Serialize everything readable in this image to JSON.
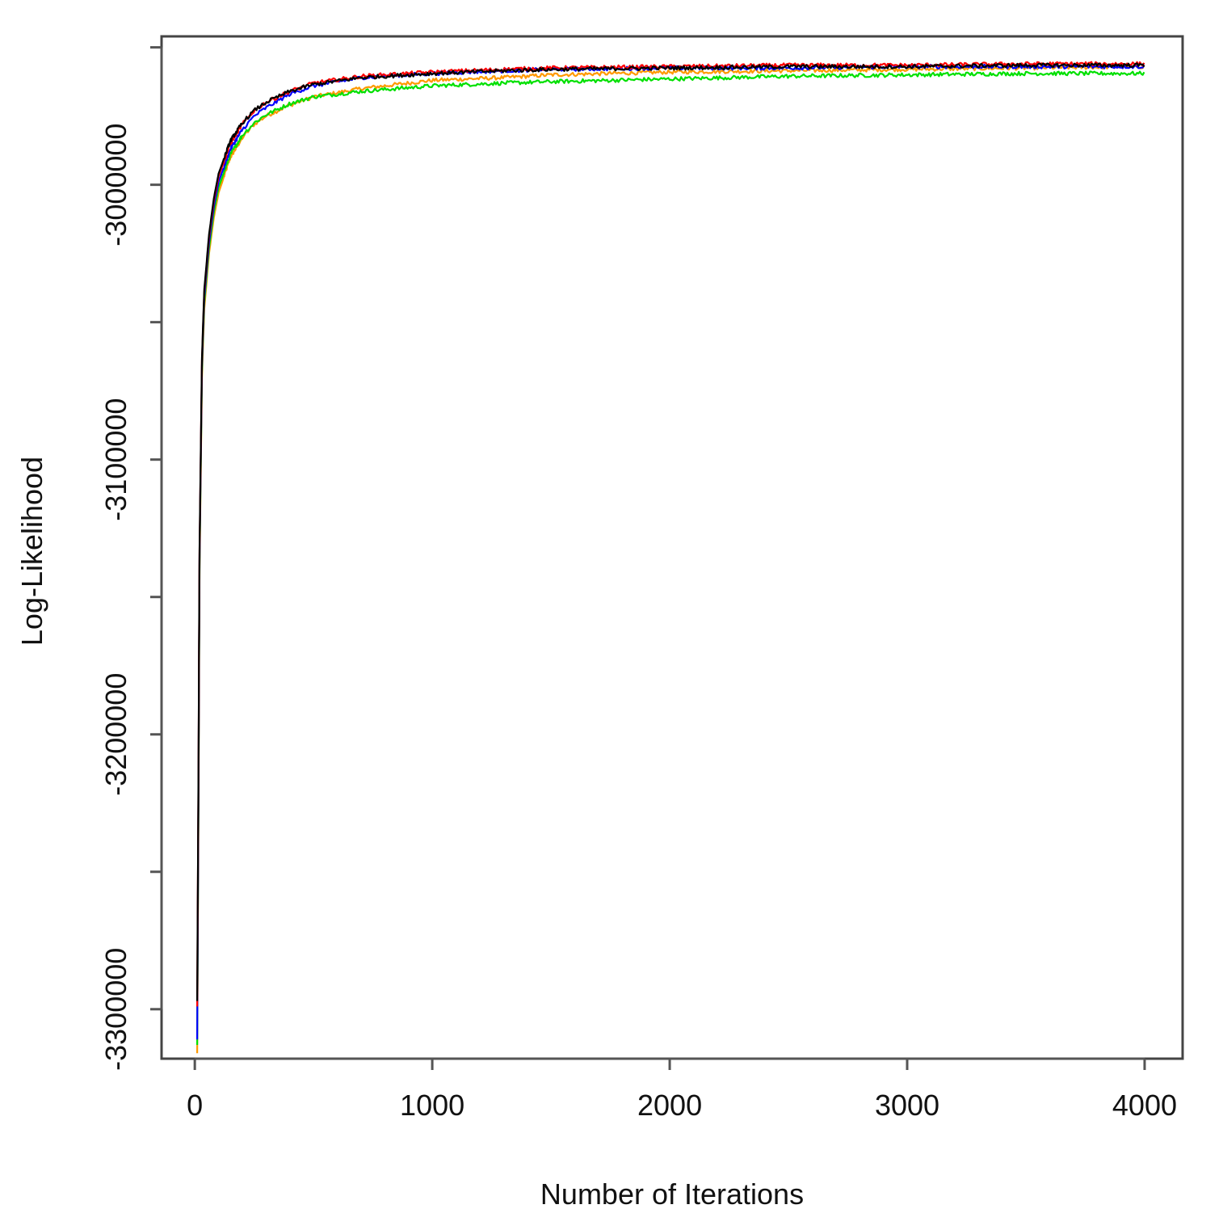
{
  "chart_data": {
    "type": "line",
    "title": "",
    "xlabel": "Number of Iterations",
    "ylabel": "Log-Likelihood",
    "xlim": [
      -140,
      4160
    ],
    "ylim": [
      -3318000,
      -2946000
    ],
    "x_ticks": [
      0,
      1000,
      2000,
      3000,
      4000
    ],
    "x_tick_labels": [
      "0",
      "1000",
      "2000",
      "3000",
      "4000"
    ],
    "y_ticks": [
      -3300000,
      -3250000,
      -3200000,
      -3150000,
      -3100000,
      -3050000,
      -3000000,
      -2950000
    ],
    "y_tick_labels": [
      "-3300000",
      "",
      "-3200000",
      "",
      "-3100000",
      "",
      "-3000000",
      ""
    ],
    "grid": false,
    "legend": "none",
    "series": [
      {
        "color": "#ff9900",
        "x": [
          10,
          15,
          20,
          30,
          40,
          60,
          80,
          100,
          150,
          200,
          250,
          300,
          400,
          500,
          700,
          1000,
          1300,
          1500,
          2000,
          2500,
          3000,
          3500,
          4000
        ],
        "y": [
          -3316000,
          -3230000,
          -3140000,
          -3070000,
          -3045000,
          -3025000,
          -3012000,
          -3003000,
          -2990000,
          -2983000,
          -2978000,
          -2975000,
          -2971000,
          -2968000,
          -2965000,
          -2962000,
          -2961000,
          -2960000,
          -2959000,
          -2958500,
          -2958000,
          -2957500,
          -2957000
        ]
      },
      {
        "color": "#00e000",
        "x": [
          10,
          15,
          20,
          30,
          40,
          60,
          80,
          100,
          150,
          200,
          250,
          300,
          400,
          500,
          700,
          1000,
          1300,
          1500,
          2000,
          2500,
          3000,
          3500,
          4000
        ],
        "y": [
          -3313000,
          -3228000,
          -3138000,
          -3068000,
          -3043000,
          -3023000,
          -3010000,
          -3001000,
          -2989000,
          -2982000,
          -2977500,
          -2974500,
          -2970500,
          -2968000,
          -2966000,
          -2964000,
          -2963000,
          -2962500,
          -2961500,
          -2960500,
          -2960000,
          -2959500,
          -2959500
        ]
      },
      {
        "color": "#0000ff",
        "x": [
          10,
          15,
          20,
          30,
          40,
          60,
          80,
          100,
          150,
          200,
          250,
          300,
          400,
          500,
          700,
          1000,
          1300,
          1500,
          2000,
          2500,
          3000,
          3500,
          4000
        ],
        "y": [
          -3311000,
          -3226000,
          -3136000,
          -3066000,
          -3041000,
          -3021000,
          -3008000,
          -2999000,
          -2987000,
          -2980000,
          -2975000,
          -2972000,
          -2967000,
          -2964000,
          -2961000,
          -2959500,
          -2958500,
          -2958000,
          -2957500,
          -2957500,
          -2957000,
          -2957000,
          -2957000
        ]
      },
      {
        "color": "#ff0000",
        "x": [
          10,
          15,
          20,
          30,
          40,
          60,
          80,
          100,
          150,
          200,
          250,
          300,
          400,
          500,
          700,
          1000,
          1300,
          1500,
          2000,
          2500,
          3000,
          3500,
          4000
        ],
        "y": [
          -3299000,
          -3222000,
          -3134000,
          -3064000,
          -3039000,
          -3019000,
          -3006000,
          -2997000,
          -2985000,
          -2978000,
          -2973000,
          -2970000,
          -2966000,
          -2963000,
          -2960500,
          -2959000,
          -2958000,
          -2957500,
          -2957000,
          -2956500,
          -2956500,
          -2956000,
          -2956000
        ]
      },
      {
        "color": "#000000",
        "x": [
          10,
          15,
          20,
          30,
          40,
          60,
          80,
          100,
          150,
          200,
          250,
          300,
          400,
          500,
          700,
          1000,
          1300,
          1500,
          2000,
          2500,
          3000,
          3500,
          4000
        ],
        "y": [
          -3297000,
          -3220000,
          -3133000,
          -3063000,
          -3038000,
          -3018000,
          -3005000,
          -2996000,
          -2984000,
          -2977500,
          -2973000,
          -2970000,
          -2966000,
          -2963500,
          -2961000,
          -2959500,
          -2958500,
          -2958000,
          -2957500,
          -2957000,
          -2957000,
          -2956500,
          -2956500
        ]
      }
    ]
  }
}
